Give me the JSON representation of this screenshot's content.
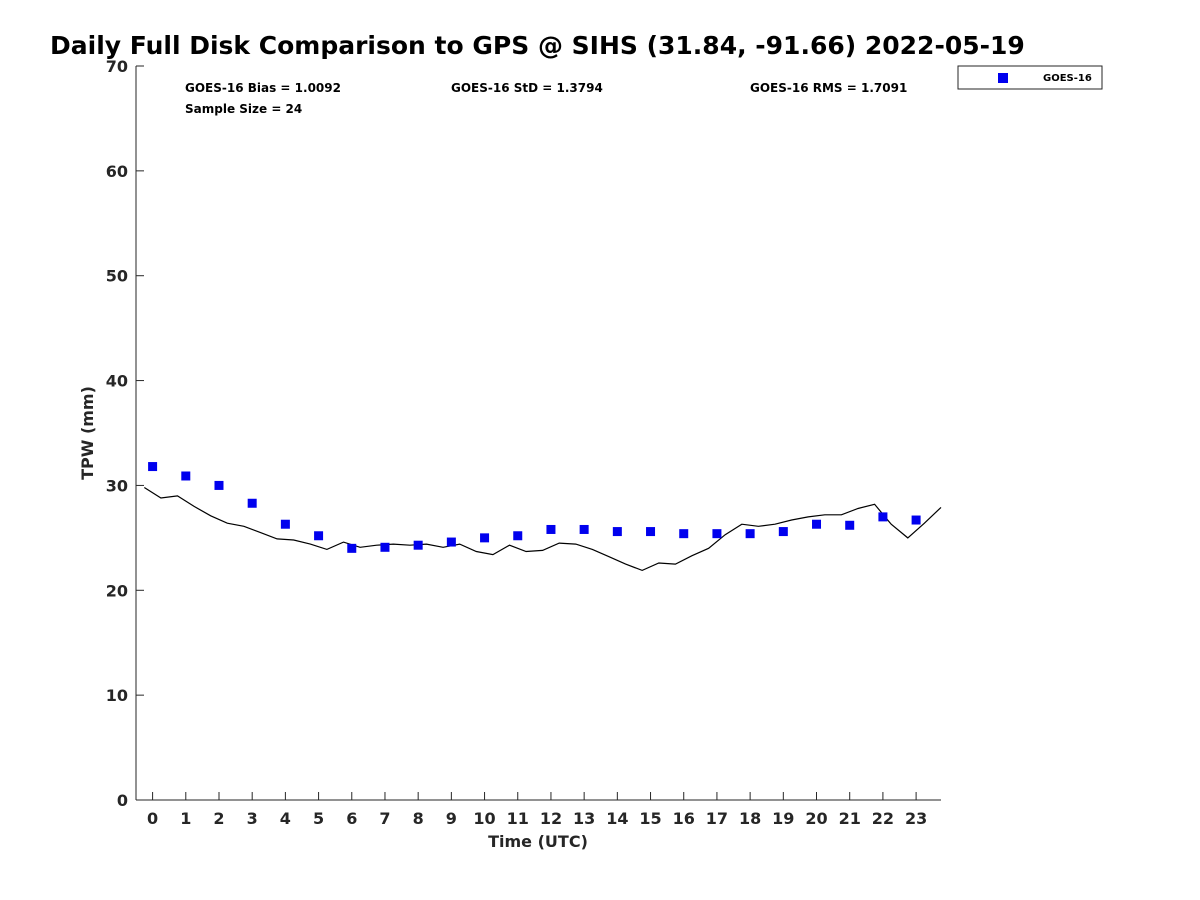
{
  "chart_data": {
    "type": "scatter",
    "title": "Daily Full Disk Comparison to GPS @ SIHS (31.84, -91.66) 2022-05-19",
    "xlabel": "Time (UTC)",
    "ylabel": "TPW (mm)",
    "xlim": [
      -0.5,
      23.75
    ],
    "ylim": [
      0,
      70
    ],
    "x_ticks": [
      0,
      1,
      2,
      3,
      4,
      5,
      6,
      7,
      8,
      9,
      10,
      11,
      12,
      13,
      14,
      15,
      16,
      17,
      18,
      19,
      20,
      21,
      22,
      23
    ],
    "y_ticks": [
      0,
      10,
      20,
      30,
      40,
      50,
      60,
      70
    ],
    "grid": false,
    "legend_position": "top-right, outside plot",
    "stats": {
      "bias": "GOES-16 Bias = 1.0092",
      "std": "GOES-16 StD = 1.3794",
      "rms": "GOES-16 RMS = 1.7091",
      "sample": "Sample Size = 24"
    },
    "series": [
      {
        "name": "GOES-16",
        "kind": "scatter",
        "marker": "square",
        "color": "#0000ee",
        "x": [
          0,
          1,
          2,
          3,
          4,
          5,
          6,
          7,
          8,
          9,
          10,
          11,
          12,
          13,
          14,
          15,
          16,
          17,
          18,
          19,
          20,
          21,
          22,
          23
        ],
        "y": [
          31.8,
          30.9,
          30.0,
          28.3,
          26.3,
          25.2,
          24.0,
          24.1,
          24.3,
          24.6,
          25.0,
          25.2,
          25.8,
          25.8,
          25.6,
          25.6,
          25.4,
          25.4,
          25.4,
          25.6,
          26.3,
          26.2,
          27.0,
          26.7
        ]
      },
      {
        "kind": "line",
        "color": "#000000",
        "x": [
          -0.25,
          0.25,
          0.75,
          1.25,
          1.75,
          2.25,
          2.75,
          3.25,
          3.75,
          4.25,
          4.75,
          5.25,
          5.75,
          6.25,
          6.75,
          7.25,
          7.75,
          8.25,
          8.75,
          9.25,
          9.75,
          10.25,
          10.75,
          11.25,
          11.75,
          12.25,
          12.75,
          13.25,
          13.75,
          14.25,
          14.75,
          15.25,
          15.75,
          16.25,
          16.75,
          17.25,
          17.75,
          18.25,
          18.75,
          19.25,
          19.75,
          20.25,
          20.75,
          21.25,
          21.75,
          22.25,
          22.75,
          23.25,
          23.75
        ],
        "y": [
          29.8,
          28.8,
          29.0,
          28.0,
          27.1,
          26.4,
          26.1,
          25.5,
          24.9,
          24.8,
          24.4,
          23.9,
          24.6,
          24.1,
          24.3,
          24.4,
          24.3,
          24.4,
          24.1,
          24.4,
          23.7,
          23.4,
          24.3,
          23.7,
          23.8,
          24.5,
          24.4,
          23.9,
          23.2,
          22.5,
          21.9,
          22.6,
          22.5,
          23.3,
          24.0,
          25.3,
          26.3,
          26.1,
          26.3,
          26.7,
          27.0,
          27.2,
          27.2,
          27.8,
          28.2,
          26.3,
          25.0,
          26.4,
          27.9
        ]
      }
    ]
  }
}
